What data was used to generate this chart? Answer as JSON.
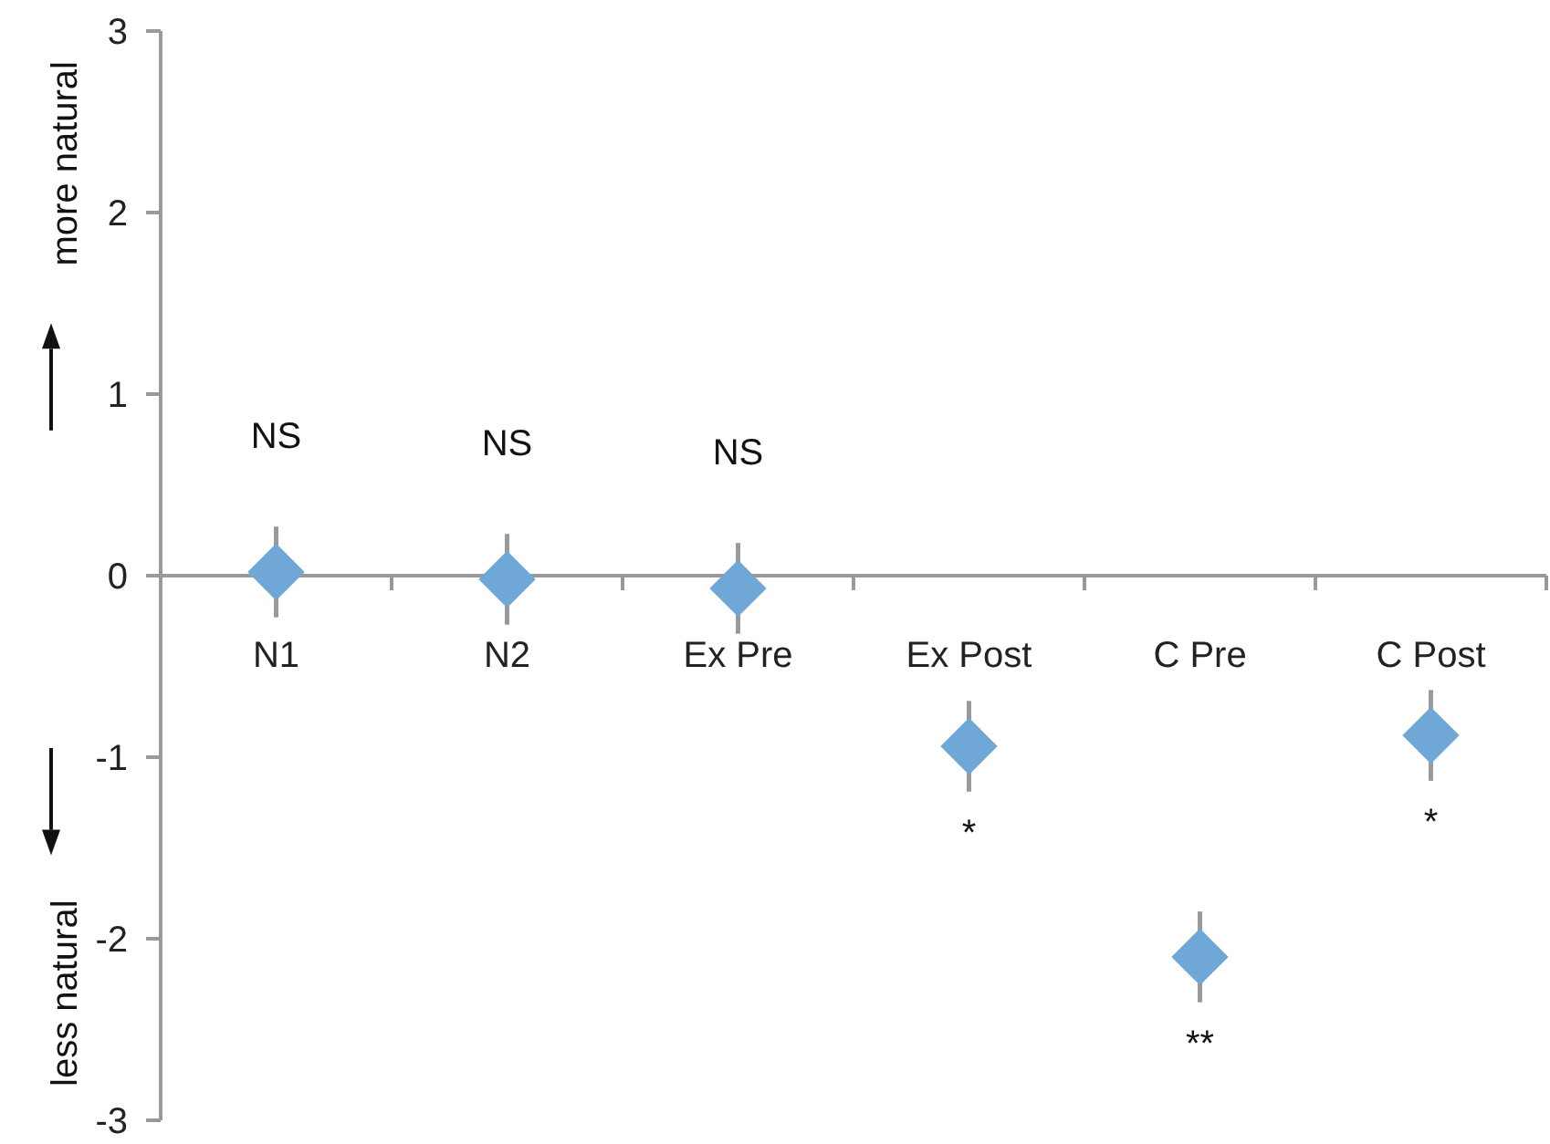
{
  "chart_data": {
    "type": "scatter",
    "categories": [
      "N1",
      "N2",
      "Ex Pre",
      "Ex Post",
      "C Pre",
      "C Post"
    ],
    "series": [
      {
        "color": "#6fa8d6",
        "values": [
          0.02,
          -0.02,
          -0.07,
          -0.94,
          -2.1,
          -0.88
        ],
        "errors": [
          0.25,
          0.25,
          0.25,
          0.25,
          0.25,
          0.25
        ]
      }
    ],
    "marker": "diamond",
    "ylim": [
      -3,
      3
    ],
    "yticks": [
      -3,
      -2,
      -1,
      0,
      1,
      2,
      3
    ],
    "grid": false,
    "annotations": [
      "more natural",
      "less natural",
      "NS",
      "NS",
      "NS",
      "*",
      "**",
      "*"
    ]
  }
}
